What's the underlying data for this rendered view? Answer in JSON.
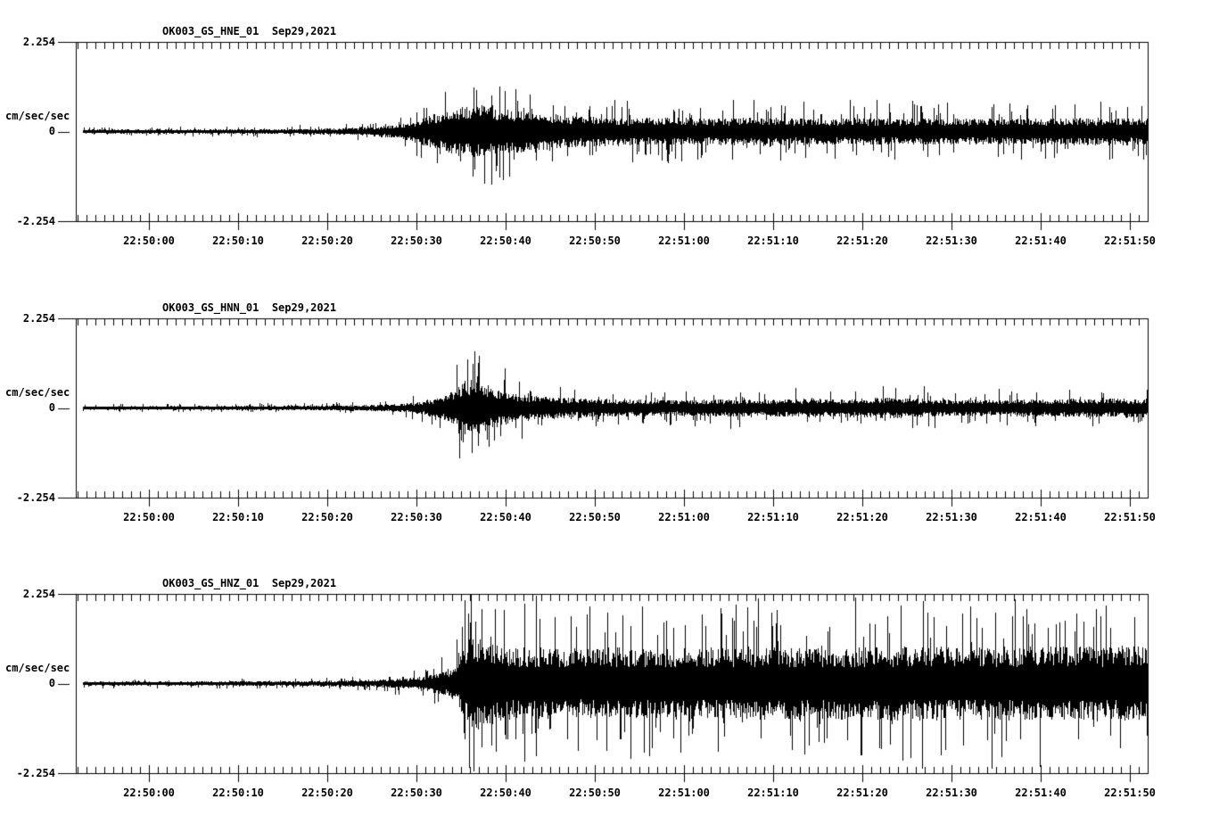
{
  "page": {
    "background": "#ffffff",
    "ink": "#000000"
  },
  "y_axis": {
    "max_label": "2.254",
    "zero_label": "0",
    "min_label": "-2.254",
    "unit": "cm/sec/sec"
  },
  "x_axis": {
    "labels": [
      "22:50:00",
      "22:50:10",
      "22:50:20",
      "22:50:30",
      "22:50:40",
      "22:50:50",
      "22:51:00",
      "22:51:10",
      "22:51:20",
      "22:51:30",
      "22:51:40",
      "22:51:50"
    ]
  },
  "panels": [
    {
      "title": "OK003_GS_HNE_01  Sep29,2021"
    },
    {
      "title": "OK003_GS_HNN_01  Sep29,2021"
    },
    {
      "title": "OK003_GS_HNZ_01  Sep29,2021"
    }
  ],
  "chart_data": {
    "type": "line",
    "title": "OK003_GS seismograms Sep29,2021",
    "ylabel": "cm/sec/sec",
    "ylim": [
      -2.254,
      2.254
    ],
    "x_tick_labels": [
      "22:50:00",
      "22:50:10",
      "22:50:20",
      "22:50:30",
      "22:50:40",
      "22:50:50",
      "22:51:00",
      "22:51:10",
      "22:51:20",
      "22:51:30",
      "22:51:40",
      "22:51:50"
    ],
    "x_major_tick_seconds": 10,
    "x_minor_tick_seconds": 1,
    "time_reference": "22:50:00",
    "trace_start_offset_s": -7.4,
    "trace_end_offset_s": 112,
    "channels": [
      {
        "name": "OK003_GS_HNE_01",
        "date": "Sep29,2021",
        "envelope": [
          [
            -7.4,
            0.045
          ],
          [
            5,
            0.05
          ],
          [
            15,
            0.055
          ],
          [
            21,
            0.07
          ],
          [
            25,
            0.1
          ],
          [
            28,
            0.16
          ],
          [
            30,
            0.26
          ],
          [
            32,
            0.4
          ],
          [
            34,
            0.52
          ],
          [
            36,
            0.6
          ],
          [
            38,
            0.58
          ],
          [
            40,
            0.5
          ],
          [
            43,
            0.44
          ],
          [
            46,
            0.38
          ],
          [
            50,
            0.34
          ],
          [
            54,
            0.3
          ],
          [
            58,
            0.33
          ],
          [
            62,
            0.29
          ],
          [
            66,
            0.31
          ],
          [
            69,
            0.34
          ],
          [
            72,
            0.3
          ],
          [
            76,
            0.29
          ],
          [
            80,
            0.31
          ],
          [
            84,
            0.29
          ],
          [
            88,
            0.31
          ],
          [
            92,
            0.29
          ],
          [
            96,
            0.31
          ],
          [
            100,
            0.29
          ],
          [
            104,
            0.31
          ],
          [
            108,
            0.3
          ],
          [
            112.5,
            0.31
          ]
        ],
        "spikes": [
          [
            36.4,
            1.12
          ],
          [
            38.9,
            -0.98
          ],
          [
            39.9,
            1.02
          ],
          [
            58.1,
            -0.75
          ],
          [
            67.8,
            0.8
          ]
        ]
      },
      {
        "name": "OK003_GS_HNN_01",
        "date": "Sep29,2021",
        "envelope": [
          [
            -7.4,
            0.04
          ],
          [
            5,
            0.045
          ],
          [
            15,
            0.05
          ],
          [
            22,
            0.06
          ],
          [
            26,
            0.08
          ],
          [
            29,
            0.11
          ],
          [
            31,
            0.16
          ],
          [
            33,
            0.28
          ],
          [
            34.5,
            0.48
          ],
          [
            35.5,
            0.62
          ],
          [
            36.5,
            0.64
          ],
          [
            37.5,
            0.56
          ],
          [
            39,
            0.44
          ],
          [
            41,
            0.34
          ],
          [
            43,
            0.28
          ],
          [
            46,
            0.24
          ],
          [
            50,
            0.21
          ],
          [
            55,
            0.19
          ],
          [
            60,
            0.18
          ],
          [
            65,
            0.2
          ],
          [
            70,
            0.19
          ],
          [
            74,
            0.21
          ],
          [
            78,
            0.2
          ],
          [
            82,
            0.24
          ],
          [
            86,
            0.21
          ],
          [
            90,
            0.19
          ],
          [
            94,
            0.18
          ],
          [
            98,
            0.19
          ],
          [
            102,
            0.2
          ],
          [
            106,
            0.21
          ],
          [
            112.5,
            0.22
          ]
        ],
        "spikes": [
          [
            35.2,
            -0.85
          ],
          [
            35.7,
            1.22
          ],
          [
            36.3,
            1.12
          ],
          [
            36.9,
            -0.95
          ],
          [
            82.3,
            0.55
          ]
        ]
      },
      {
        "name": "OK003_GS_HNZ_01",
        "date": "Sep29,2021",
        "envelope": [
          [
            -7.4,
            0.045
          ],
          [
            5,
            0.05
          ],
          [
            15,
            0.055
          ],
          [
            22,
            0.07
          ],
          [
            26,
            0.09
          ],
          [
            29,
            0.12
          ],
          [
            31,
            0.17
          ],
          [
            33,
            0.27
          ],
          [
            34.5,
            0.45
          ],
          [
            35.3,
            0.8
          ],
          [
            36,
            1.05
          ],
          [
            37,
            1.05
          ],
          [
            38,
            0.95
          ],
          [
            40,
            0.85
          ],
          [
            45,
            0.8
          ],
          [
            50,
            0.82
          ],
          [
            55,
            0.8
          ],
          [
            60,
            0.82
          ],
          [
            65,
            0.8
          ],
          [
            70,
            0.82
          ],
          [
            75,
            0.8
          ],
          [
            80,
            0.82
          ],
          [
            85,
            0.84
          ],
          [
            90,
            0.82
          ],
          [
            95,
            0.84
          ],
          [
            100,
            0.86
          ],
          [
            105,
            0.84
          ],
          [
            110,
            0.85
          ],
          [
            112.5,
            0.86
          ]
        ],
        "spikes": [
          [
            35.8,
            1.75
          ],
          [
            36.1,
            2.254
          ],
          [
            36.35,
            -2.08
          ],
          [
            36.6,
            1.55
          ],
          [
            37.3,
            -1.6
          ],
          [
            62.4,
            1.45
          ],
          [
            92.8,
            1.65
          ],
          [
            104.8,
            1.55
          ]
        ]
      }
    ]
  }
}
